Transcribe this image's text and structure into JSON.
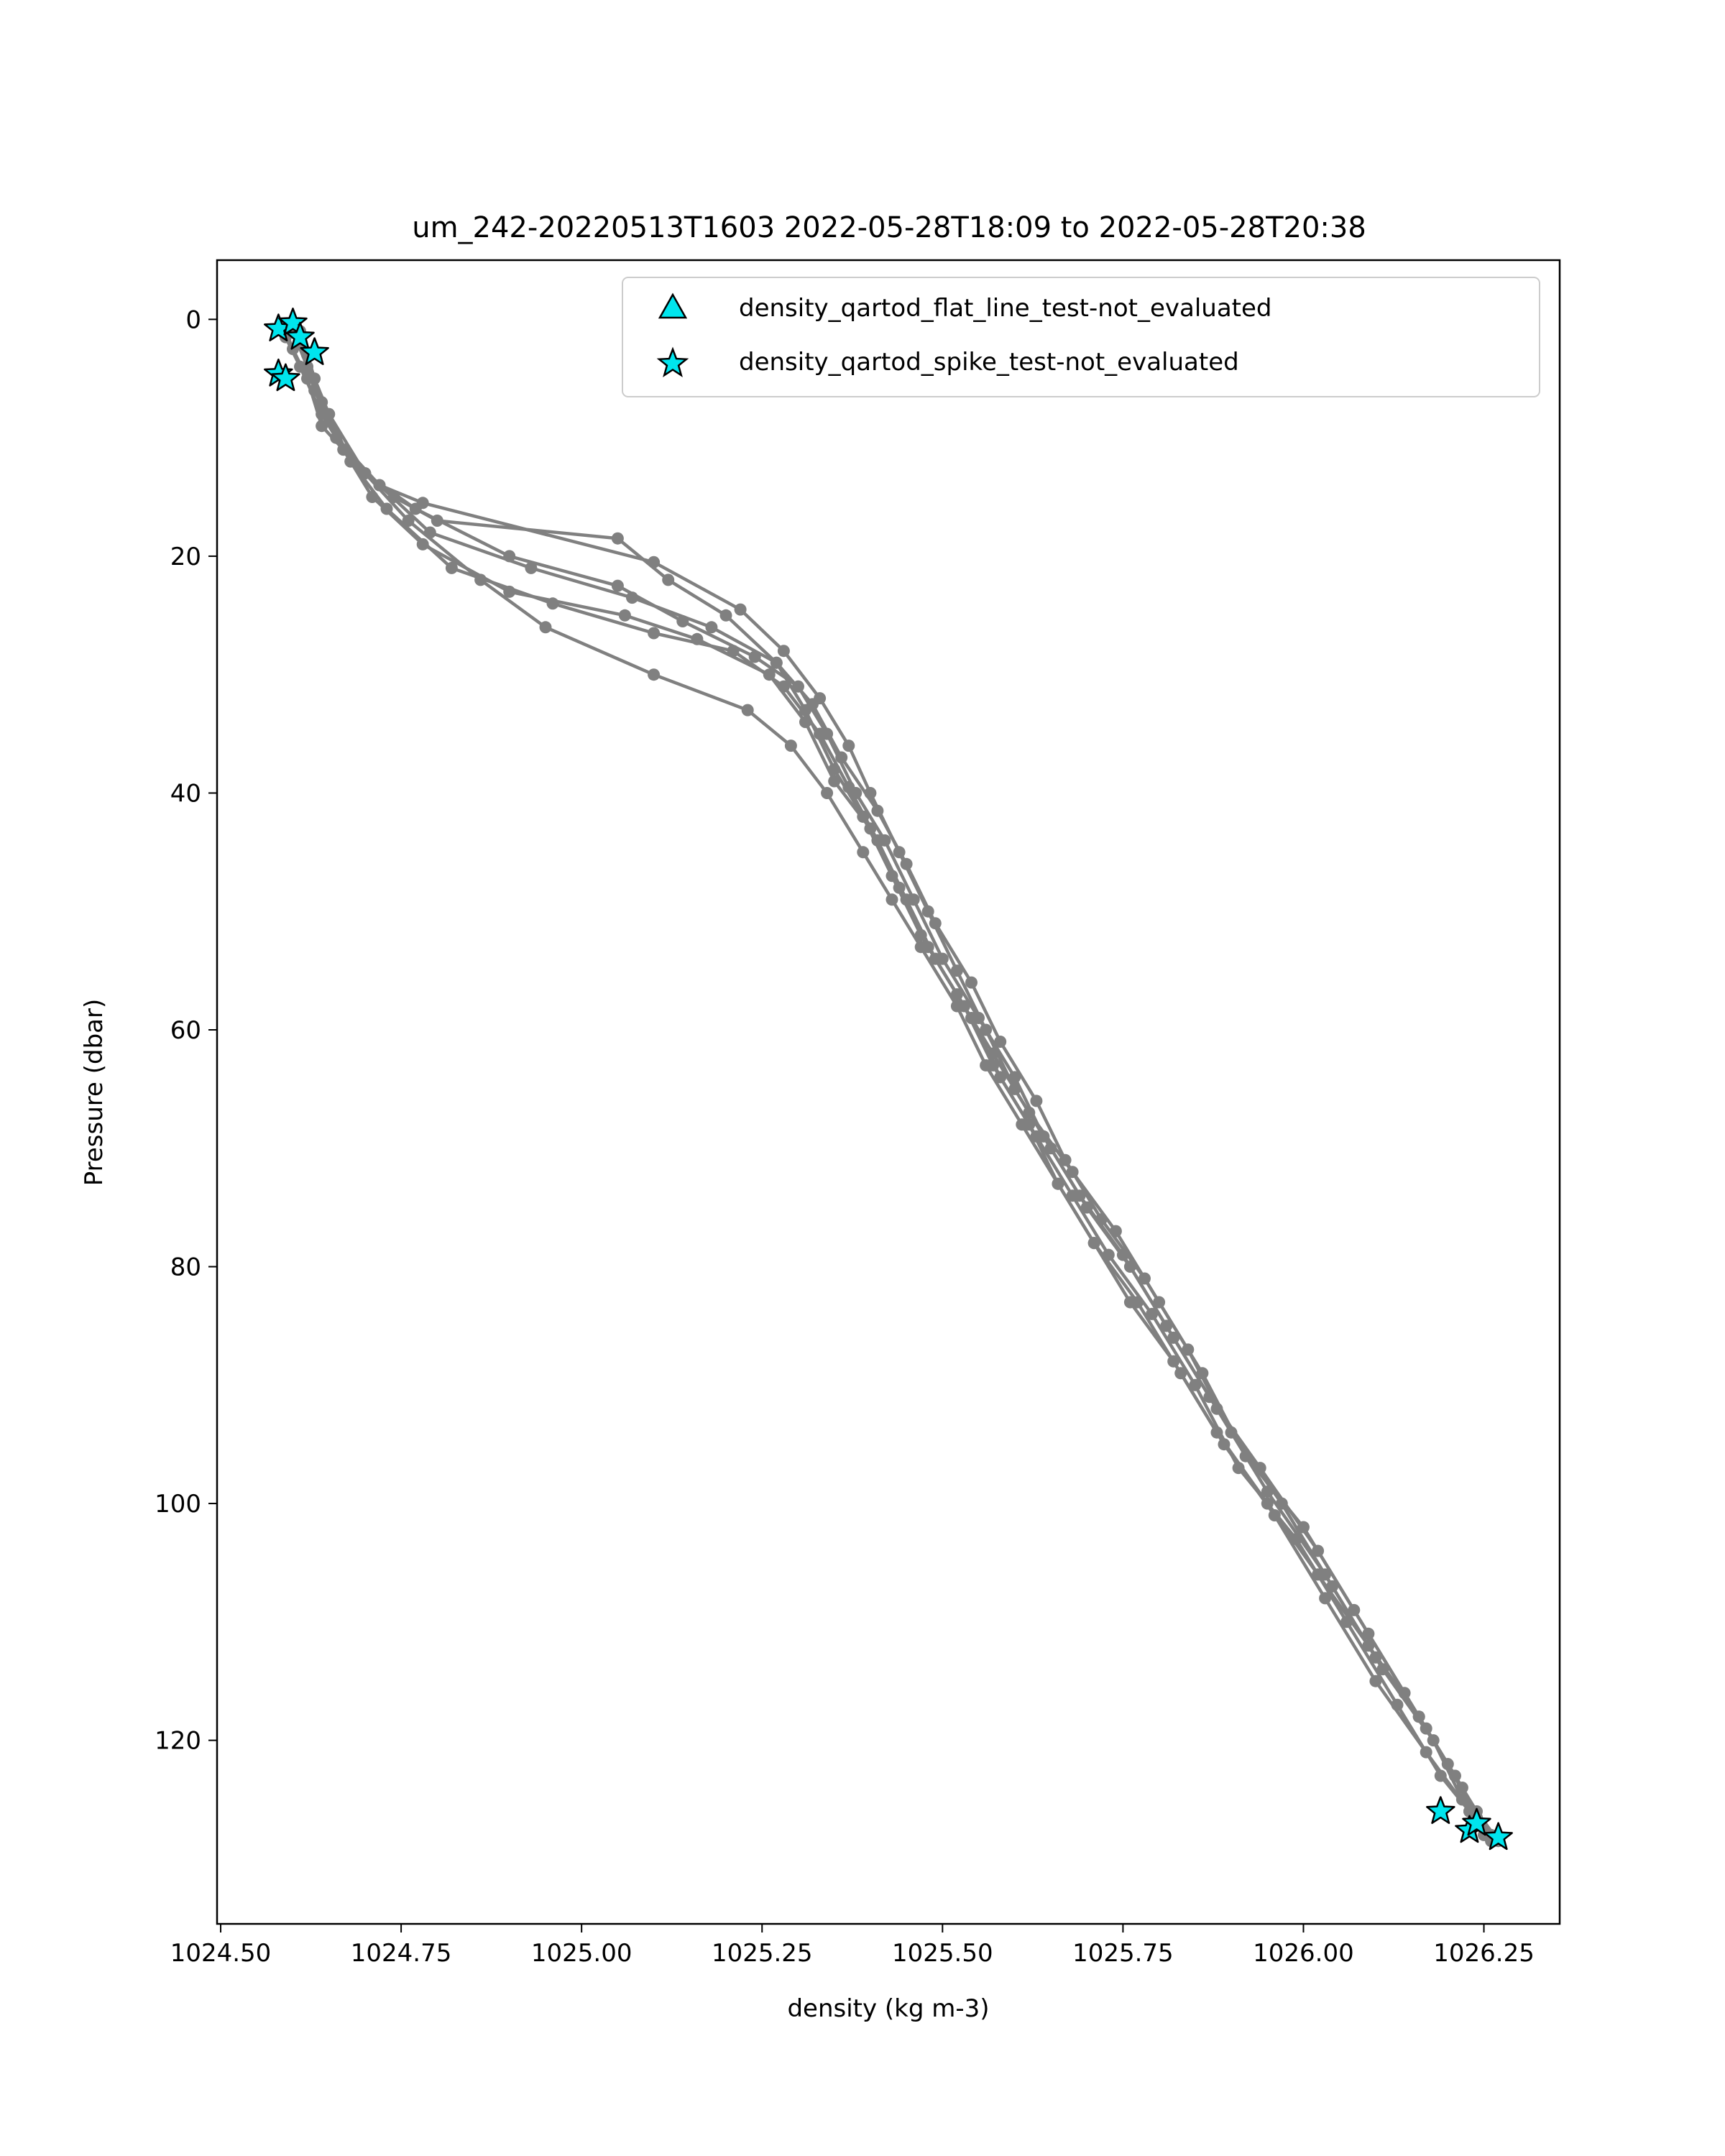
{
  "chart_data": {
    "type": "line",
    "title": "um_242-20220513T1603 2022-05-28T18:09 to 2022-05-28T20:38",
    "xlabel": "density (kg m-3)",
    "ylabel": "Pressure (dbar)",
    "xlim": [
      1024.495,
      1026.355
    ],
    "ylim": [
      135.5,
      -5
    ],
    "y_inverted": true,
    "grid": false,
    "legend_position": "upper right",
    "x_ticks": [
      1024.5,
      1024.75,
      1025.0,
      1025.25,
      1025.5,
      1025.75,
      1026.0,
      1026.25
    ],
    "x_tick_labels": [
      "1024.50",
      "1024.75",
      "1025.00",
      "1025.25",
      "1025.50",
      "1025.75",
      "1026.00",
      "1026.25"
    ],
    "y_ticks": [
      0,
      20,
      40,
      60,
      80,
      100,
      120
    ],
    "y_tick_labels": [
      "0",
      "20",
      "40",
      "60",
      "80",
      "100",
      "120"
    ],
    "profile_color": "#808080",
    "flag_color": "#00e5ee",
    "legend": [
      {
        "label": "density_qartod_flat_line_test-not_evaluated",
        "marker": "triangle",
        "color": "#00e5ee"
      },
      {
        "label": "density_qartod_spike_test-not_evaluated",
        "marker": "star",
        "color": "#00e5ee"
      }
    ],
    "series": [
      {
        "points": [
          [
            1024.6,
            0.5
          ],
          [
            1024.61,
            2
          ],
          [
            1024.62,
            4
          ],
          [
            1024.64,
            7
          ],
          [
            1024.67,
            11
          ],
          [
            1024.72,
            14
          ],
          [
            1024.78,
            15.5
          ],
          [
            1025.1,
            20.5
          ],
          [
            1025.22,
            24.5
          ],
          [
            1025.28,
            28
          ],
          [
            1025.33,
            32
          ],
          [
            1025.37,
            36
          ],
          [
            1025.4,
            40
          ],
          [
            1025.44,
            45
          ],
          [
            1025.48,
            50
          ],
          [
            1025.52,
            55
          ],
          [
            1025.56,
            60
          ],
          [
            1025.6,
            65
          ],
          [
            1025.65,
            70
          ],
          [
            1025.7,
            75
          ],
          [
            1025.76,
            80
          ],
          [
            1025.82,
            86
          ],
          [
            1025.88,
            92
          ],
          [
            1025.95,
            99
          ],
          [
            1026.03,
            106
          ],
          [
            1026.1,
            113
          ],
          [
            1026.17,
            119
          ],
          [
            1026.22,
            124
          ],
          [
            1026.25,
            127.5
          ]
        ]
      },
      {
        "points": [
          [
            1024.61,
            1
          ],
          [
            1024.62,
            3
          ],
          [
            1024.63,
            5
          ],
          [
            1024.65,
            8
          ],
          [
            1024.68,
            12
          ],
          [
            1024.74,
            15
          ],
          [
            1024.8,
            17
          ],
          [
            1025.05,
            18.5
          ],
          [
            1025.12,
            22
          ],
          [
            1025.2,
            25
          ],
          [
            1025.27,
            29
          ],
          [
            1025.31,
            33
          ],
          [
            1025.35,
            38
          ],
          [
            1025.39,
            42
          ],
          [
            1025.43,
            47
          ],
          [
            1025.47,
            52
          ],
          [
            1025.52,
            57
          ],
          [
            1025.57,
            62
          ],
          [
            1025.62,
            67
          ],
          [
            1025.68,
            72
          ],
          [
            1025.74,
            77
          ],
          [
            1025.8,
            83
          ],
          [
            1025.86,
            89
          ],
          [
            1025.92,
            96
          ],
          [
            1026.0,
            102
          ],
          [
            1026.07,
            109
          ],
          [
            1026.14,
            116
          ],
          [
            1026.2,
            122
          ],
          [
            1026.24,
            126.5
          ]
        ]
      },
      {
        "points": [
          [
            1024.59,
            1
          ],
          [
            1024.6,
            2.5
          ],
          [
            1024.62,
            5
          ],
          [
            1024.64,
            9
          ],
          [
            1024.7,
            13
          ],
          [
            1024.77,
            16
          ],
          [
            1024.9,
            20
          ],
          [
            1025.05,
            22.5
          ],
          [
            1025.14,
            25.5
          ],
          [
            1025.24,
            28.5
          ],
          [
            1025.3,
            31
          ],
          [
            1025.34,
            35
          ],
          [
            1025.38,
            40
          ],
          [
            1025.42,
            44
          ],
          [
            1025.46,
            49
          ],
          [
            1025.5,
            54
          ],
          [
            1025.55,
            59
          ],
          [
            1025.6,
            64
          ],
          [
            1025.64,
            69
          ],
          [
            1025.69,
            74
          ],
          [
            1025.75,
            79
          ],
          [
            1025.81,
            85
          ],
          [
            1025.87,
            91
          ],
          [
            1025.94,
            97
          ],
          [
            1026.02,
            104
          ],
          [
            1026.09,
            111
          ],
          [
            1026.16,
            118
          ],
          [
            1026.21,
            123
          ],
          [
            1026.24,
            127
          ]
        ]
      },
      {
        "points": [
          [
            1024.6,
            0.5
          ],
          [
            1024.61,
            2
          ],
          [
            1024.63,
            6
          ],
          [
            1024.66,
            10
          ],
          [
            1024.72,
            14
          ],
          [
            1024.79,
            18
          ],
          [
            1024.93,
            21
          ],
          [
            1025.07,
            23.5
          ],
          [
            1025.18,
            26
          ],
          [
            1025.27,
            29
          ],
          [
            1025.32,
            32.5
          ],
          [
            1025.36,
            37
          ],
          [
            1025.41,
            41.5
          ],
          [
            1025.45,
            46
          ],
          [
            1025.49,
            51
          ],
          [
            1025.54,
            56
          ],
          [
            1025.58,
            61
          ],
          [
            1025.63,
            66
          ],
          [
            1025.67,
            71
          ],
          [
            1025.72,
            76
          ],
          [
            1025.78,
            81
          ],
          [
            1025.84,
            87
          ],
          [
            1025.9,
            94
          ],
          [
            1025.97,
            100
          ],
          [
            1026.04,
            107
          ],
          [
            1026.11,
            114
          ],
          [
            1026.18,
            120
          ],
          [
            1026.22,
            125
          ],
          [
            1026.25,
            128
          ]
        ]
      },
      {
        "points": [
          [
            1024.6,
            1
          ],
          [
            1024.62,
            3
          ],
          [
            1024.64,
            7
          ],
          [
            1024.67,
            11
          ],
          [
            1024.71,
            15
          ],
          [
            1024.78,
            19
          ],
          [
            1024.9,
            23
          ],
          [
            1025.06,
            25
          ],
          [
            1025.16,
            27
          ],
          [
            1025.26,
            30
          ],
          [
            1025.31,
            34
          ],
          [
            1025.35,
            39
          ],
          [
            1025.4,
            43
          ],
          [
            1025.44,
            48
          ],
          [
            1025.48,
            53
          ],
          [
            1025.53,
            58
          ],
          [
            1025.57,
            63
          ],
          [
            1025.62,
            68
          ],
          [
            1025.66,
            73
          ],
          [
            1025.71,
            78
          ],
          [
            1025.77,
            83
          ],
          [
            1025.83,
            89
          ],
          [
            1025.89,
            95
          ],
          [
            1025.96,
            101
          ],
          [
            1026.03,
            108
          ],
          [
            1026.1,
            115
          ],
          [
            1026.17,
            121
          ],
          [
            1026.23,
            126
          ],
          [
            1026.26,
            128.5
          ]
        ]
      },
      {
        "points": [
          [
            1024.59,
            1.5
          ],
          [
            1024.61,
            4
          ],
          [
            1024.64,
            8
          ],
          [
            1024.68,
            12
          ],
          [
            1024.73,
            16
          ],
          [
            1024.82,
            21
          ],
          [
            1024.96,
            24
          ],
          [
            1025.1,
            26.5
          ],
          [
            1025.21,
            28
          ],
          [
            1025.28,
            31
          ],
          [
            1025.33,
            35
          ],
          [
            1025.37,
            39.5
          ],
          [
            1025.41,
            44
          ],
          [
            1025.45,
            49
          ],
          [
            1025.49,
            54
          ],
          [
            1025.54,
            59
          ],
          [
            1025.58,
            64
          ],
          [
            1025.63,
            69
          ],
          [
            1025.68,
            74
          ],
          [
            1025.73,
            79
          ],
          [
            1025.79,
            84
          ],
          [
            1025.85,
            90
          ],
          [
            1025.91,
            97
          ],
          [
            1025.99,
            103
          ],
          [
            1026.06,
            110
          ],
          [
            1026.13,
            117
          ],
          [
            1026.19,
            123
          ],
          [
            1026.23,
            126
          ],
          [
            1026.26,
            128
          ]
        ]
      },
      {
        "points": [
          [
            1024.6,
            1
          ],
          [
            1024.62,
            4
          ],
          [
            1024.65,
            8
          ],
          [
            1024.7,
            13
          ],
          [
            1024.76,
            17
          ],
          [
            1024.86,
            22
          ],
          [
            1024.95,
            26
          ],
          [
            1025.1,
            30
          ],
          [
            1025.23,
            33
          ],
          [
            1025.29,
            36
          ],
          [
            1025.34,
            40
          ],
          [
            1025.39,
            45
          ],
          [
            1025.43,
            49
          ],
          [
            1025.47,
            53
          ],
          [
            1025.52,
            58
          ],
          [
            1025.56,
            63
          ],
          [
            1025.61,
            68
          ],
          [
            1025.66,
            73
          ],
          [
            1025.71,
            78
          ],
          [
            1025.76,
            83
          ],
          [
            1025.82,
            88
          ],
          [
            1025.88,
            94
          ],
          [
            1025.95,
            100
          ],
          [
            1026.02,
            106
          ],
          [
            1026.09,
            112
          ],
          [
            1026.16,
            118
          ],
          [
            1026.21,
            123
          ],
          [
            1026.24,
            126
          ],
          [
            1026.27,
            128.5
          ]
        ]
      }
    ],
    "flagged_points": [
      {
        "x": 1024.58,
        "y": 0.8
      },
      {
        "x": 1024.6,
        "y": 0.3
      },
      {
        "x": 1024.61,
        "y": 1.5
      },
      {
        "x": 1024.63,
        "y": 2.8
      },
      {
        "x": 1024.58,
        "y": 4.6
      },
      {
        "x": 1024.59,
        "y": 5.0
      },
      {
        "x": 1026.19,
        "y": 126.0
      },
      {
        "x": 1026.23,
        "y": 127.6
      },
      {
        "x": 1026.24,
        "y": 127.0
      },
      {
        "x": 1026.27,
        "y": 128.2
      }
    ]
  }
}
